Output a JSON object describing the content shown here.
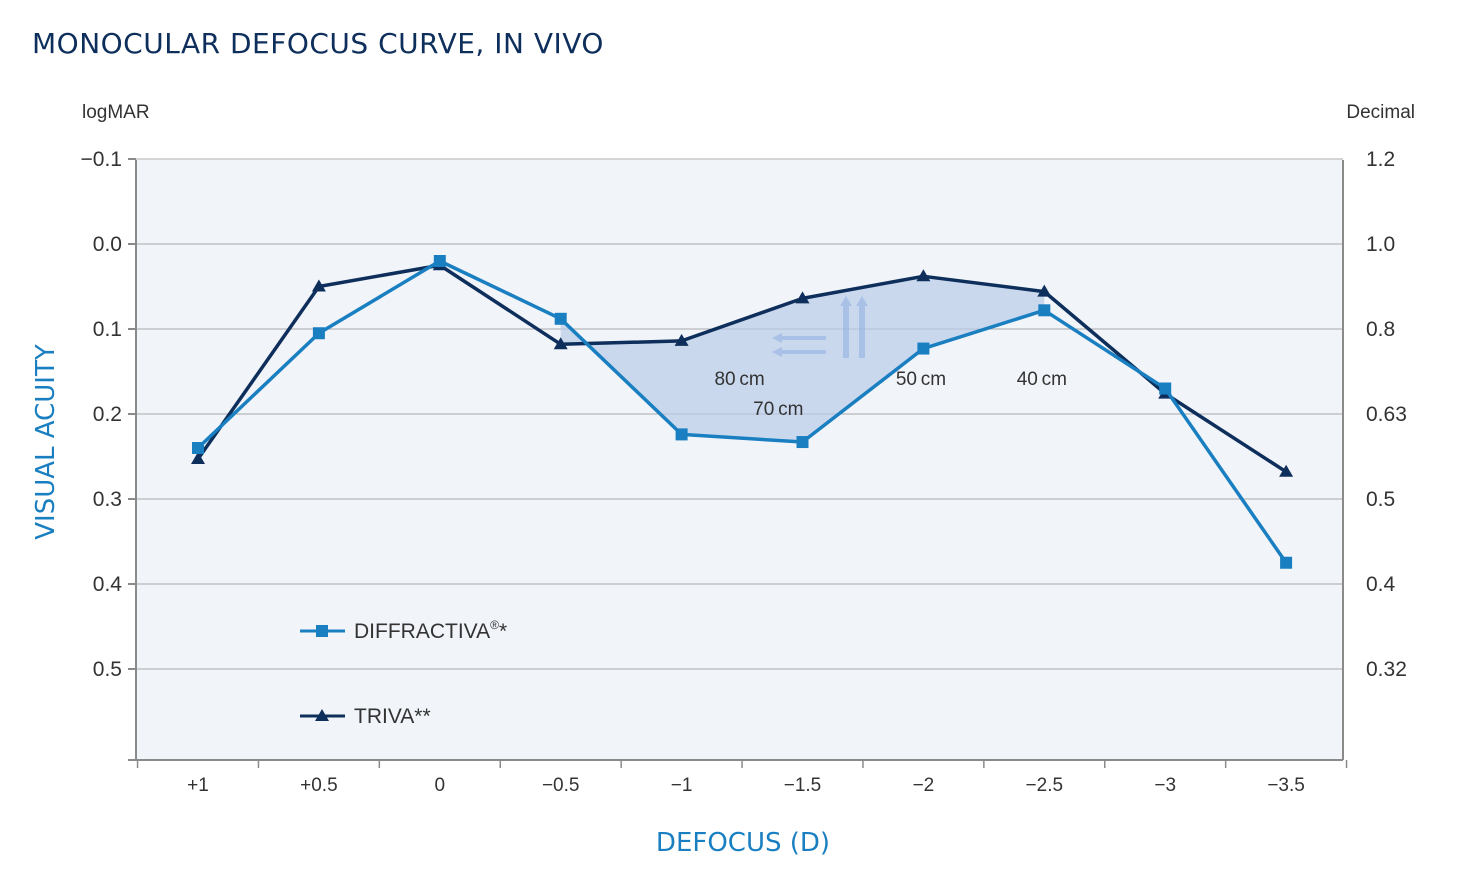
{
  "colors": {
    "plot_bg": "#f1f4f9",
    "grid": "#a9a9a9",
    "axis": "#8a8a8a",
    "diffractiva": "#1a7fc1",
    "triva": "#0e2f5c",
    "shade": "#b5c9e8",
    "title": "#0e2f5c",
    "axis_title": "#1a7fc1"
  },
  "chart_data": {
    "type": "line",
    "title": "MONOCULAR DEFOCUS CURVE, IN VIVO",
    "xlabel": "DEFOCUS (D)",
    "ylabel": "VISUAL ACUITY",
    "left_axis_unit": "logMAR",
    "right_axis_unit": "Decimal",
    "ylim": [
      -0.1,
      0.62
    ],
    "y_inverted": true,
    "grid": true,
    "categories": [
      "+1",
      "+0.5",
      "0",
      "−0.5",
      "−1",
      "−1.5",
      "−2",
      "−2.5",
      "−3",
      "−3.5"
    ],
    "y_ticks": [
      {
        "value": -0.1,
        "label": "−0.1",
        "decimal": "1.2"
      },
      {
        "value": 0.0,
        "label": "0.0",
        "decimal": "1.0"
      },
      {
        "value": 0.1,
        "label": "0.1",
        "decimal": "0.8"
      },
      {
        "value": 0.2,
        "label": "0.2",
        "decimal": "0.63"
      },
      {
        "value": 0.3,
        "label": "0.3",
        "decimal": "0.5"
      },
      {
        "value": 0.4,
        "label": "0.4",
        "decimal": "0.4"
      },
      {
        "value": 0.5,
        "label": "0.5",
        "decimal": "0.32"
      }
    ],
    "series": [
      {
        "name": "DIFFRACTIVA",
        "superscript": "®",
        "suffix": "*",
        "marker": "square",
        "values": [
          0.24,
          0.105,
          0.02,
          0.088,
          0.224,
          0.233,
          0.123,
          0.078,
          0.17,
          0.375
        ]
      },
      {
        "name": "TRIVA**",
        "superscript": "",
        "suffix": "",
        "marker": "triangle",
        "values": [
          0.253,
          0.05,
          0.025,
          0.118,
          0.114,
          0.064,
          0.038,
          0.056,
          0.176,
          0.268
        ]
      }
    ],
    "shaded_region": {
      "from_index": 3,
      "to_index": 7
    },
    "annotations": [
      {
        "text": "80 cm",
        "x": -1.24,
        "y": 0.166
      },
      {
        "text": "70 cm",
        "x": -1.4,
        "y": 0.201
      },
      {
        "text": "50 cm",
        "x": -1.99,
        "y": 0.166
      },
      {
        "text": "40 cm",
        "x": -2.49,
        "y": 0.166
      }
    ],
    "legend_position": "bottom-left"
  }
}
